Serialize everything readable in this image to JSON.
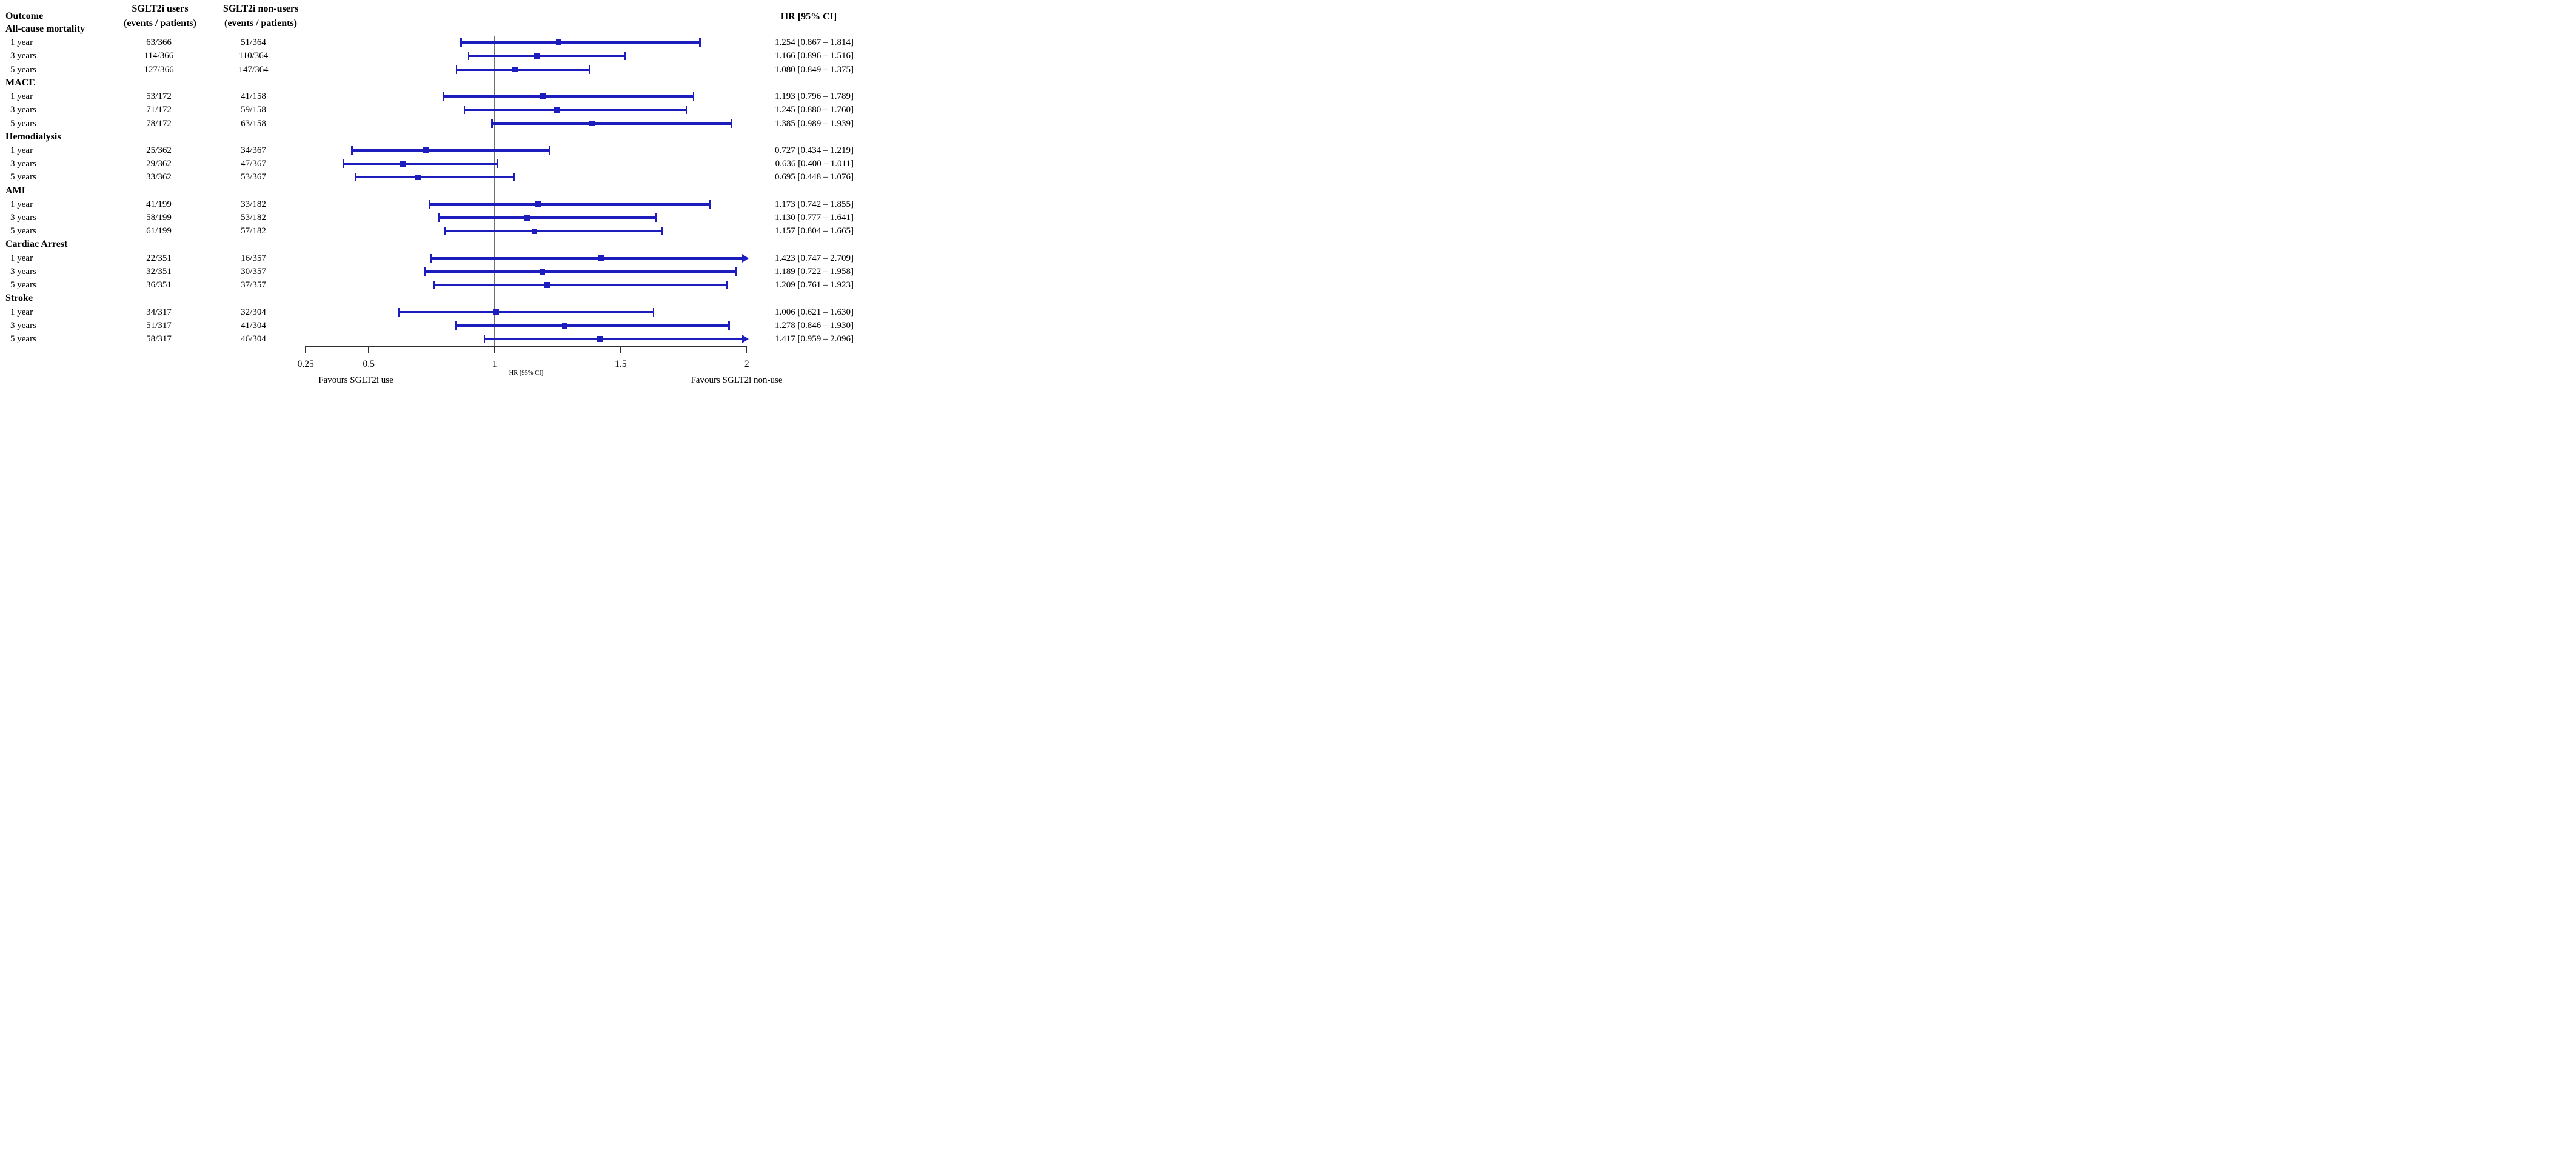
{
  "header": {
    "outcome": "Outcome",
    "users_line1": "SGLT2i users",
    "users_line2": "(events / patients)",
    "nonusers_line1": "SGLT2i non-users",
    "nonusers_line2": "(events / patients)",
    "hr": "HR [95% CI]"
  },
  "colors": {
    "bar_blue": "#1d1dbe",
    "reference_line_gray": "#6f6f6f",
    "axis_black": "#2f2f2f",
    "text_black": "#000000"
  },
  "chart_data": {
    "type": "forest",
    "x_axis": {
      "scale": "linear",
      "range": [
        0.25,
        2
      ],
      "ticks": [
        "0.25",
        "0.5",
        "1",
        "1.5",
        "2"
      ],
      "label": "HR [95% CI]",
      "reference_line": 1,
      "favours_left": "Favours SGLT2i use",
      "favours_right": "Favours SGLT2i non-use"
    },
    "groups": [
      {
        "outcome": "All-cause mortality",
        "rows": [
          {
            "time": "1 year",
            "users": "63/366",
            "nonusers": "51/364",
            "hr": 1.254,
            "lo": 0.867,
            "hi": 1.814,
            "hr_text": "1.254 [0.867 – 1.814]"
          },
          {
            "time": "3 years",
            "users": "114/366",
            "nonusers": "110/364",
            "hr": 1.166,
            "lo": 0.896,
            "hi": 1.516,
            "hr_text": "1.166 [0.896 – 1.516]"
          },
          {
            "time": "5 years",
            "users": "127/366",
            "nonusers": "147/364",
            "hr": 1.08,
            "lo": 0.849,
            "hi": 1.375,
            "hr_text": "1.080 [0.849 – 1.375]"
          }
        ]
      },
      {
        "outcome": "MACE",
        "rows": [
          {
            "time": "1 year",
            "users": "53/172",
            "nonusers": "41/158",
            "hr": 1.193,
            "lo": 0.796,
            "hi": 1.789,
            "hr_text": "1.193 [0.796 – 1.789]"
          },
          {
            "time": "3 years",
            "users": "71/172",
            "nonusers": "59/158",
            "hr": 1.245,
            "lo": 0.88,
            "hi": 1.76,
            "hr_text": "1.245 [0.880 – 1.760]"
          },
          {
            "time": "5 years",
            "users": "78/172",
            "nonusers": "63/158",
            "hr": 1.385,
            "lo": 0.989,
            "hi": 1.939,
            "hr_text": "1.385 [0.989 – 1.939]"
          }
        ]
      },
      {
        "outcome": "Hemodialysis",
        "rows": [
          {
            "time": "1 year",
            "users": "25/362",
            "nonusers": "34/367",
            "hr": 0.727,
            "lo": 0.434,
            "hi": 1.219,
            "hr_text": "0.727 [0.434 – 1.219]"
          },
          {
            "time": "3 years",
            "users": "29/362",
            "nonusers": "47/367",
            "hr": 0.636,
            "lo": 0.4,
            "hi": 1.011,
            "hr_text": "0.636 [0.400 – 1.011]"
          },
          {
            "time": "5 years",
            "users": "33/362",
            "nonusers": "53/367",
            "hr": 0.695,
            "lo": 0.448,
            "hi": 1.076,
            "hr_text": "0.695 [0.448 – 1.076]"
          }
        ]
      },
      {
        "outcome": "AMI",
        "rows": [
          {
            "time": "1 year",
            "users": "41/199",
            "nonusers": "33/182",
            "hr": 1.173,
            "lo": 0.742,
            "hi": 1.855,
            "hr_text": "1.173 [0.742 – 1.855]"
          },
          {
            "time": "3 years",
            "users": "58/199",
            "nonusers": "53/182",
            "hr": 1.13,
            "lo": 0.777,
            "hi": 1.641,
            "hr_text": "1.130 [0.777 – 1.641]"
          },
          {
            "time": "5 years",
            "users": "61/199",
            "nonusers": "57/182",
            "hr": 1.157,
            "lo": 0.804,
            "hi": 1.665,
            "hr_text": "1.157 [0.804 – 1.665]"
          }
        ]
      },
      {
        "outcome": "Cardiac Arrest",
        "rows": [
          {
            "time": "1 year",
            "users": "22/351",
            "nonusers": "16/357",
            "hr": 1.423,
            "lo": 0.747,
            "hi": 2.709,
            "hr_text": "1.423 [0.747 – 2.709]"
          },
          {
            "time": "3 years",
            "users": "32/351",
            "nonusers": "30/357",
            "hr": 1.189,
            "lo": 0.722,
            "hi": 1.958,
            "hr_text": "1.189 [0.722 – 1.958]"
          },
          {
            "time": "5 years",
            "users": "36/351",
            "nonusers": "37/357",
            "hr": 1.209,
            "lo": 0.761,
            "hi": 1.923,
            "hr_text": "1.209 [0.761 – 1.923]"
          }
        ]
      },
      {
        "outcome": "Stroke",
        "rows": [
          {
            "time": "1 year",
            "users": "34/317",
            "nonusers": "32/304",
            "hr": 1.006,
            "lo": 0.621,
            "hi": 1.63,
            "hr_text": "1.006 [0.621 – 1.630]"
          },
          {
            "time": "3 years",
            "users": "51/317",
            "nonusers": "41/304",
            "hr": 1.278,
            "lo": 0.846,
            "hi": 1.93,
            "hr_text": "1.278 [0.846 – 1.930]"
          },
          {
            "time": "5 years",
            "users": "58/317",
            "nonusers": "46/304",
            "hr": 1.417,
            "lo": 0.959,
            "hi": 2.096,
            "hr_text": "1.417 [0.959 – 2.096]"
          }
        ]
      }
    ]
  }
}
